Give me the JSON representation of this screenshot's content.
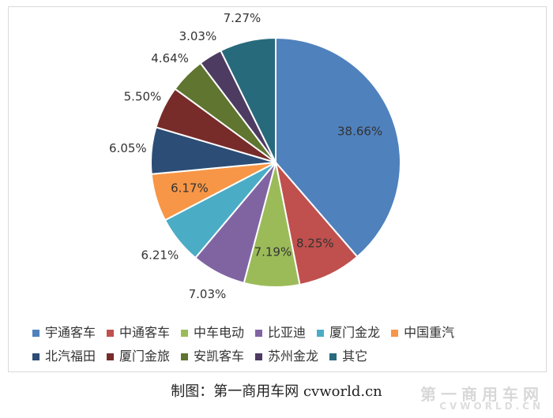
{
  "chart_data": {
    "type": "pie",
    "title": "",
    "slices": [
      {
        "name": "宇通客车",
        "value": 38.66,
        "label": "38.66%",
        "color": "#4f81bd",
        "label_inside": true
      },
      {
        "name": "中通客车",
        "value": 8.25,
        "label": "8.25%",
        "color": "#c0504d",
        "label_inside": true
      },
      {
        "name": "中车电动",
        "value": 7.19,
        "label": "7.19%",
        "color": "#9bbb59",
        "label_inside": true
      },
      {
        "name": "比亚迪",
        "value": 7.03,
        "label": "7.03%",
        "color": "#8064a2",
        "label_inside": false
      },
      {
        "name": "厦门金龙",
        "value": 6.21,
        "label": "6.21%",
        "color": "#4bacc6",
        "label_inside": false
      },
      {
        "name": "中国重汽",
        "value": 6.17,
        "label": "6.17%",
        "color": "#f79646",
        "label_inside": true
      },
      {
        "name": "北汽福田",
        "value": 6.05,
        "label": "6.05%",
        "color": "#2c4d75",
        "label_inside": false
      },
      {
        "name": "厦门金旅",
        "value": 5.5,
        "label": "5.50%",
        "color": "#772c2a",
        "label_inside": false
      },
      {
        "name": "安凯客车",
        "value": 4.64,
        "label": "4.64%",
        "color": "#5f7530",
        "label_inside": false
      },
      {
        "name": "苏州金龙",
        "value": 3.03,
        "label": "3.03%",
        "color": "#4d3b62",
        "label_inside": false
      },
      {
        "name": "其它",
        "value": 7.27,
        "label": "7.27%",
        "color": "#276a7c",
        "label_inside": false
      }
    ],
    "start_angle_deg": 0,
    "direction": "clockwise",
    "legend_position": "bottom",
    "legend_rows": [
      [
        "宇通客车",
        "中通客车",
        "中车电动",
        "比亚迪",
        "厦门金龙",
        "中国重汽"
      ],
      [
        "北汽福田",
        "厦门金旅",
        "安凯客车",
        "苏州金龙",
        "其它"
      ]
    ]
  },
  "caption": "制图：第一商用车网 cvworld.cn",
  "watermark": {
    "text": "第一商用车网",
    "sub": "CVWORLD.CN"
  }
}
